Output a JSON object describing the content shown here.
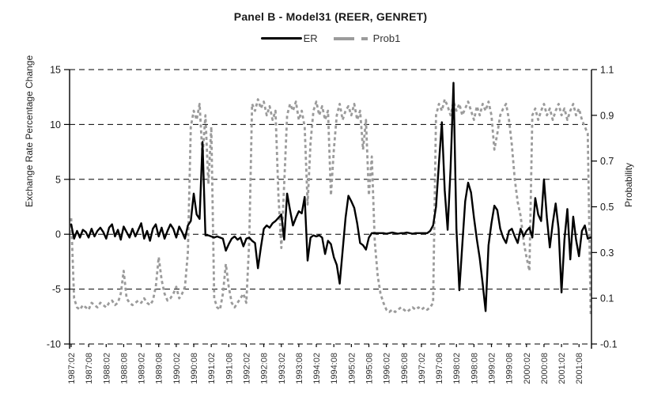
{
  "title": "Panel B - Model31 (REER, GENRET)",
  "legend": {
    "items": [
      {
        "label": "ER",
        "color": "#000000",
        "style": "solid"
      },
      {
        "label": "Prob1",
        "color": "#9b9b9b",
        "style": "dashed"
      }
    ]
  },
  "left_axis": {
    "title": "Exchange Rate Percentage Change",
    "min": -10,
    "max": 15,
    "ticks": [
      15,
      10,
      5,
      0,
      -5,
      -10
    ]
  },
  "right_axis": {
    "title": "Probability",
    "min": -0.1,
    "max": 1.1,
    "ticks": [
      1.1,
      0.9,
      0.7,
      0.5,
      0.3,
      0.1,
      -0.1
    ]
  },
  "x_axis": {
    "tick_labels": [
      "1987:02",
      "1987:08",
      "1988:02",
      "1988:08",
      "1989:02",
      "1989:08",
      "1990:02",
      "1990:08",
      "1991:02",
      "1991:08",
      "1992:02",
      "1992:08",
      "1993:02",
      "1993:08",
      "1994:02",
      "1994:08",
      "1995:02",
      "1995:08",
      "1996:02",
      "1996:08",
      "1997:02",
      "1997:08",
      "1998:02",
      "1998:08",
      "1999:02",
      "1999:08",
      "2000:02",
      "2000:08",
      "2001:02",
      "2001:08"
    ],
    "months_per_label": 6
  },
  "chart_data": {
    "type": "line",
    "x_start": "1987:02",
    "x_end": "2001:12",
    "frequency": "monthly",
    "n_points": 179,
    "grid": "horizontal-dashed",
    "legend_position": "top-center",
    "series": [
      {
        "name": "ER",
        "axis": "left",
        "values": [
          0.9,
          -0.4,
          0.3,
          -0.3,
          0.4,
          0.2,
          -0.3,
          0.5,
          -0.2,
          0.3,
          0.6,
          0.2,
          -0.4,
          0.6,
          0.9,
          -0.2,
          0.4,
          -0.5,
          0.7,
          0.2,
          -0.3,
          0.5,
          -0.2,
          0.4,
          1.0,
          -0.4,
          0.3,
          -0.6,
          0.5,
          0.9,
          -0.2,
          0.6,
          -0.4,
          0.3,
          0.9,
          0.5,
          -0.3,
          0.7,
          0.2,
          -0.4,
          0.8,
          1.2,
          3.7,
          1.8,
          1.4,
          8.4,
          -0.1,
          -0.1,
          -0.2,
          -0.3,
          -0.2,
          -0.3,
          -0.4,
          -1.5,
          -0.9,
          -0.4,
          -0.2,
          -0.5,
          -0.3,
          -1.1,
          -0.4,
          -0.3,
          -0.6,
          -0.8,
          -3.1,
          -1.2,
          0.5,
          0.8,
          0.6,
          1.0,
          1.2,
          1.5,
          1.8,
          -0.5,
          3.7,
          2.2,
          0.8,
          1.5,
          2.1,
          1.9,
          3.4,
          -2.4,
          -0.3,
          -0.1,
          -0.2,
          -0.1,
          -0.3,
          -1.8,
          -0.6,
          -0.9,
          -2.1,
          -2.8,
          -4.5,
          -1.5,
          1.5,
          3.5,
          3.0,
          2.4,
          1.0,
          -0.8,
          -1.0,
          -1.4,
          -0.3,
          0.1,
          0.1,
          0.1,
          0.1,
          0.1,
          0.05,
          0.1,
          0.15,
          0.1,
          0.05,
          0.1,
          0.1,
          0.15,
          0.1,
          0.05,
          0.1,
          0.1,
          0.1,
          0.1,
          0.1,
          0.3,
          0.8,
          2.5,
          6.5,
          10.2,
          4.0,
          0.4,
          6.0,
          13.8,
          0.5,
          -5.1,
          -1.0,
          3.0,
          4.7,
          3.8,
          1.5,
          -0.5,
          -2.2,
          -4.5,
          -7.0,
          -1.0,
          1.0,
          2.6,
          2.2,
          0.5,
          -0.3,
          -0.8,
          0.3,
          0.5,
          -0.2,
          -0.8,
          0.5,
          -0.2,
          0.3,
          0.6,
          -0.3,
          3.3,
          1.8,
          1.2,
          5.0,
          1.5,
          -1.2,
          1.0,
          2.8,
          0.5,
          -5.3,
          -0.5,
          2.3,
          -2.3,
          1.6,
          -0.5,
          -2.0,
          0.3,
          0.8,
          -0.4,
          -0.3
        ]
      },
      {
        "name": "Prob1",
        "axis": "right",
        "values": [
          0.45,
          0.1,
          0.06,
          0.05,
          0.07,
          0.06,
          0.05,
          0.08,
          0.07,
          0.06,
          0.08,
          0.07,
          0.06,
          0.08,
          0.09,
          0.07,
          0.08,
          0.12,
          0.22,
          0.1,
          0.08,
          0.07,
          0.08,
          0.09,
          0.08,
          0.1,
          0.08,
          0.07,
          0.09,
          0.15,
          0.28,
          0.18,
          0.12,
          0.09,
          0.1,
          0.12,
          0.15,
          0.1,
          0.12,
          0.15,
          0.3,
          0.85,
          0.92,
          0.88,
          0.95,
          0.72,
          0.9,
          0.6,
          0.85,
          0.1,
          0.06,
          0.05,
          0.12,
          0.25,
          0.15,
          0.08,
          0.06,
          0.08,
          0.1,
          0.12,
          0.08,
          0.35,
          0.95,
          0.92,
          0.97,
          0.93,
          0.96,
          0.9,
          0.94,
          0.88,
          0.92,
          0.55,
          0.32,
          0.6,
          0.9,
          0.95,
          0.92,
          0.96,
          0.88,
          0.92,
          0.85,
          0.51,
          0.78,
          0.92,
          0.96,
          0.9,
          0.94,
          0.88,
          0.92,
          0.55,
          0.75,
          0.9,
          0.95,
          0.88,
          0.92,
          0.94,
          0.9,
          0.95,
          0.88,
          0.92,
          0.75,
          0.88,
          0.55,
          0.72,
          0.35,
          0.2,
          0.12,
          0.08,
          0.05,
          0.04,
          0.05,
          0.04,
          0.05,
          0.06,
          0.05,
          0.04,
          0.05,
          0.06,
          0.05,
          0.06,
          0.05,
          0.06,
          0.05,
          0.06,
          0.08,
          0.9,
          0.95,
          0.92,
          0.97,
          0.94,
          0.9,
          0.96,
          0.92,
          0.95,
          0.9,
          0.93,
          0.96,
          0.92,
          0.88,
          0.94,
          0.9,
          0.95,
          0.92,
          0.96,
          0.9,
          0.75,
          0.82,
          0.9,
          0.93,
          0.95,
          0.88,
          0.77,
          0.62,
          0.52,
          0.46,
          0.35,
          0.28,
          0.22,
          0.9,
          0.93,
          0.88,
          0.92,
          0.95,
          0.9,
          0.93,
          0.88,
          0.92,
          0.95,
          0.9,
          0.93,
          0.88,
          0.92,
          0.95,
          0.9,
          0.93,
          0.88,
          0.85,
          0.82,
          0.03
        ]
      }
    ]
  }
}
